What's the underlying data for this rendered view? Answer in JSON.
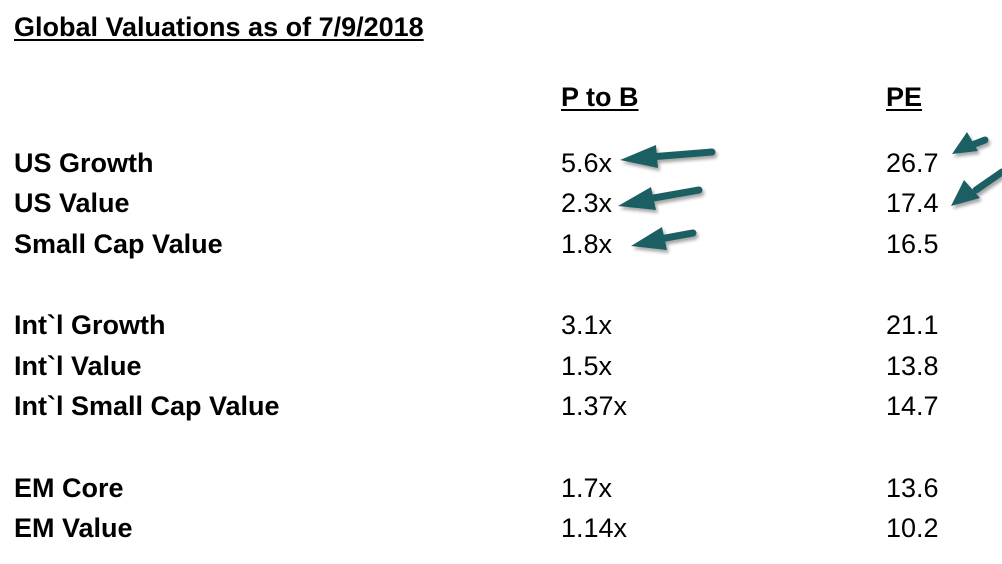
{
  "title": "Global Valuations as of 7/9/2018",
  "columns": {
    "pb": "P to B",
    "pe": "PE"
  },
  "rows": [
    {
      "label": "US Growth",
      "pb": "5.6x",
      "pe": "26.7"
    },
    {
      "label": "US Value",
      "pb": "2.3x",
      "pe": "17.4"
    },
    {
      "label": "Small Cap Value",
      "pb": "1.8x",
      "pe": "16.5"
    },
    {
      "label": "Int`l Growth",
      "pb": "3.1x",
      "pe": "21.1"
    },
    {
      "label": "Int`l Value",
      "pb": "1.5x",
      "pe": "13.8"
    },
    {
      "label": "Int`l Small Cap Value",
      "pb": "1.37x",
      "pe": "14.7"
    },
    {
      "label": "EM Core",
      "pb": "1.7x",
      "pe": "13.6"
    },
    {
      "label": "EM Value",
      "pb": "1.14x",
      "pe": "10.2"
    }
  ],
  "colors": {
    "arrow": "#1f5f63",
    "text": "#000000",
    "background": "#ffffff"
  }
}
